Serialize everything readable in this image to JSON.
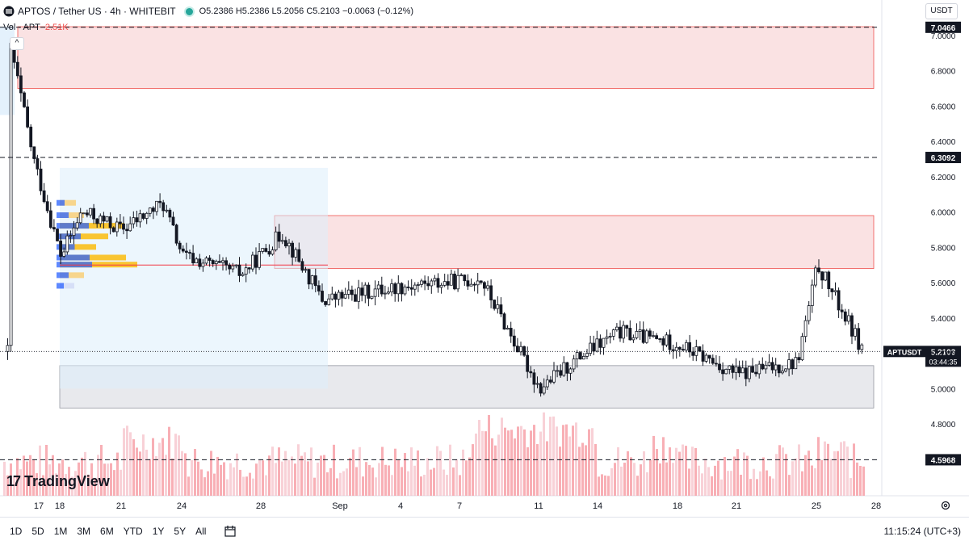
{
  "header": {
    "symbol": "APTOS / Tether US · 4h · WHITEBIT",
    "ohlc": "O5.2386 H5.2386 L5.2056 C5.2103 −0.0063 (−0.12%)",
    "icon": "aptos-logo-icon"
  },
  "volume_legend": {
    "label": "Vol · APT",
    "value": "2.51K"
  },
  "currency": "USDT",
  "brand": "TradingView",
  "last_price": {
    "ticker": "APTUSDT",
    "price": "5.2103",
    "countdown": "03:44:35"
  },
  "level_lines": [
    {
      "label": "7.0466",
      "value": 7.0466
    },
    {
      "label": "6.3092",
      "value": 6.3092
    },
    {
      "label": "4.5968",
      "value": 4.5968
    }
  ],
  "range_buttons": [
    "1D",
    "5D",
    "1M",
    "3M",
    "6M",
    "YTD",
    "1Y",
    "5Y",
    "All"
  ],
  "clock": "11:15:24 (UTC+3)",
  "colors": {
    "up": "#26a69a",
    "down": "#ef5350",
    "volume_up": "#e9a9b4",
    "zone_red": "#f5c6c8",
    "zone_gray": "#d1d4dc",
    "zone_blue": "#ddeefb",
    "poc": "#f23645"
  },
  "chart_data": {
    "type": "candlestick",
    "symbol": "APTUSDT",
    "timeframe": "4h",
    "y_ticks": [
      "7.0000",
      "6.8000",
      "6.6000",
      "6.4000",
      "6.2000",
      "6.0000",
      "5.8000",
      "5.6000",
      "5.4000",
      "5.2000",
      "5.0000",
      "4.8000"
    ],
    "ylim": [
      4.55,
      7.1
    ],
    "x_ticks": [
      "17",
      "18",
      "21",
      "24",
      "28",
      "Sep",
      "4",
      "7",
      "11",
      "14",
      "18",
      "21",
      "25",
      "28"
    ],
    "zones": [
      {
        "kind": "resistance",
        "top": 7.05,
        "bottom": 6.7,
        "start": "17",
        "end": "28 Sep"
      },
      {
        "kind": "resistance",
        "top": 5.98,
        "bottom": 5.68,
        "start": "28 Aug",
        "end": "28 Sep"
      },
      {
        "kind": "support",
        "top": 5.13,
        "bottom": 4.89,
        "start": "18",
        "end": "28 Sep"
      },
      {
        "kind": "range",
        "top": 6.25,
        "bottom": 5.0,
        "start": "18",
        "end": "Sep"
      }
    ],
    "point_of_control": 5.7,
    "closes_anchor": [
      {
        "date": "17 Aug",
        "price": 6.98
      },
      {
        "date": "17 Aug",
        "price": 6.3
      },
      {
        "date": "18 Aug",
        "price": 5.75
      },
      {
        "date": "19 Aug",
        "price": 6.0
      },
      {
        "date": "21 Aug",
        "price": 5.9
      },
      {
        "date": "23 Aug",
        "price": 6.05
      },
      {
        "date": "24 Aug",
        "price": 5.75
      },
      {
        "date": "27 Aug",
        "price": 5.65
      },
      {
        "date": "29 Aug",
        "price": 5.88
      },
      {
        "date": "31 Aug",
        "price": 5.5
      },
      {
        "date": "4 Sep",
        "price": 5.58
      },
      {
        "date": "8 Sep",
        "price": 5.62
      },
      {
        "date": "10 Sep",
        "price": 5.2
      },
      {
        "date": "11 Sep",
        "price": 5.0
      },
      {
        "date": "13 Sep",
        "price": 5.18
      },
      {
        "date": "15 Sep",
        "price": 5.32
      },
      {
        "date": "18 Sep",
        "price": 5.25
      },
      {
        "date": "21 Sep",
        "price": 5.08
      },
      {
        "date": "24 Sep",
        "price": 5.15
      },
      {
        "date": "25 Sep",
        "price": 5.7
      },
      {
        "date": "27 Sep",
        "price": 5.21
      }
    ]
  }
}
